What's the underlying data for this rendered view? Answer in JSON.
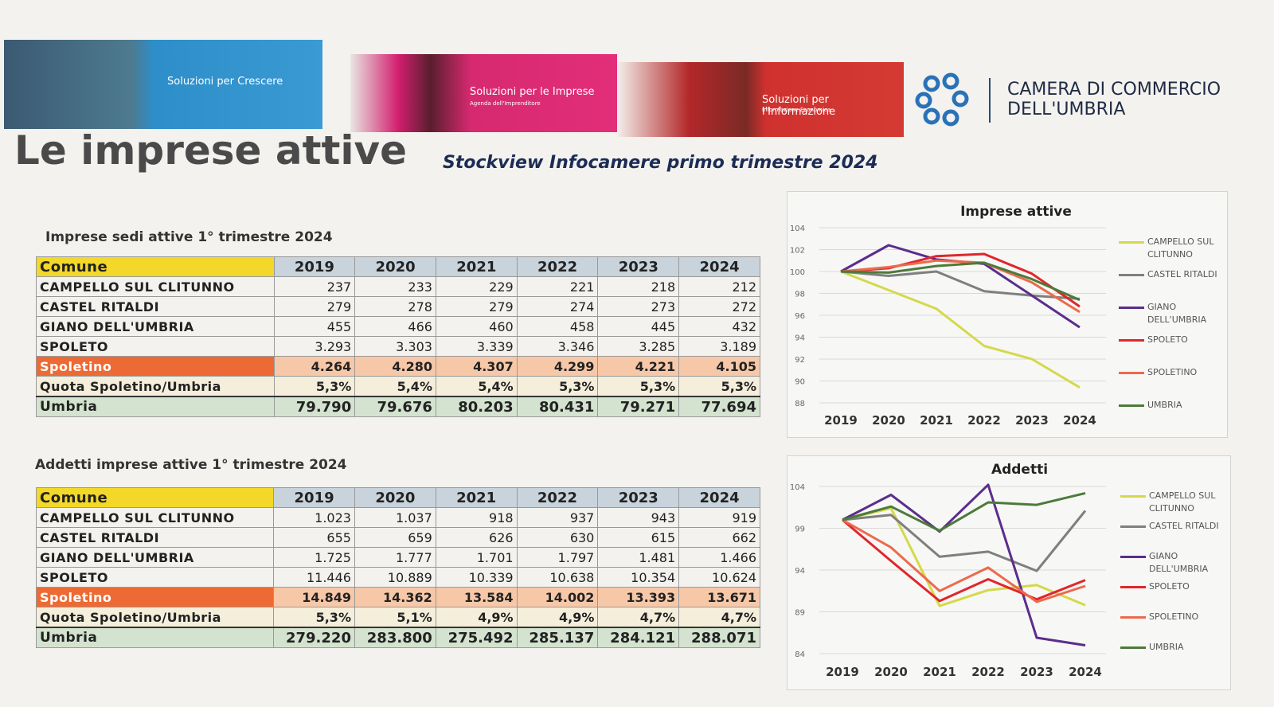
{
  "header": {
    "banners": [
      {
        "title": "Soluzioni per Crescere"
      },
      {
        "title": "Soluzioni per le Imprese",
        "subtitle": "Agenda dell'Imprenditore"
      },
      {
        "title": "Soluzioni per l'Informazione",
        "subtitle": "Informazione Economica"
      }
    ],
    "organization": [
      "CAMERA DI COMMERCIO",
      "DELL'UMBRIA"
    ]
  },
  "title": "Le imprese attive",
  "subtitle": "Stockview Infocamere primo trimestre 2024",
  "tables": [
    {
      "caption": "Imprese sedi attive 1° trimestre 2024",
      "columns": [
        "Comune",
        "2019",
        "2020",
        "2021",
        "2022",
        "2023",
        "2024"
      ],
      "rows": [
        [
          "CAMPELLO SUL CLITUNNO",
          "237",
          "233",
          "229",
          "221",
          "218",
          "212"
        ],
        [
          "CASTEL RITALDI",
          "279",
          "278",
          "279",
          "274",
          "273",
          "272"
        ],
        [
          "GIANO DELL'UMBRIA",
          "455",
          "466",
          "460",
          "458",
          "445",
          "432"
        ],
        [
          "SPOLETO",
          "3.293",
          "3.303",
          "3.339",
          "3.346",
          "3.285",
          "3.189"
        ],
        [
          "Spoletino",
          "4.264",
          "4.280",
          "4.307",
          "4.299",
          "4.221",
          "4.105"
        ],
        [
          "Quota Spoletino/Umbria",
          "5,3%",
          "5,4%",
          "5,4%",
          "5,3%",
          "5,3%",
          "5,3%"
        ],
        [
          "Umbria",
          "79.790",
          "79.676",
          "80.203",
          "80.431",
          "79.271",
          "77.694"
        ]
      ]
    },
    {
      "caption": "Addetti imprese attive 1° trimestre 2024",
      "columns": [
        "Comune",
        "2019",
        "2020",
        "2021",
        "2022",
        "2023",
        "2024"
      ],
      "rows": [
        [
          "CAMPELLO SUL CLITUNNO",
          "1.023",
          "1.037",
          "918",
          "937",
          "943",
          "919"
        ],
        [
          "CASTEL RITALDI",
          "655",
          "659",
          "626",
          "630",
          "615",
          "662"
        ],
        [
          "GIANO DELL'UMBRIA",
          "1.725",
          "1.777",
          "1.701",
          "1.797",
          "1.481",
          "1.466"
        ],
        [
          "SPOLETO",
          "11.446",
          "10.889",
          "10.339",
          "10.638",
          "10.354",
          "10.624"
        ],
        [
          "Spoletino",
          "14.849",
          "14.362",
          "13.584",
          "14.002",
          "13.393",
          "13.671"
        ],
        [
          "Quota Spoletino/Umbria",
          "5,3%",
          "5,1%",
          "4,9%",
          "4,9%",
          "4,7%",
          "4,7%"
        ],
        [
          "Umbria",
          "279.220",
          "283.800",
          "275.492",
          "285.137",
          "284.121",
          "288.071"
        ]
      ]
    }
  ],
  "chart_data": [
    {
      "type": "line",
      "title": "Imprese attive",
      "categories": [
        "2019",
        "2020",
        "2021",
        "2022",
        "2023",
        "2024"
      ],
      "ylim": [
        88,
        104
      ],
      "yticks": [
        88,
        90,
        92,
        94,
        96,
        98,
        100,
        102,
        104
      ],
      "grid": true,
      "series": [
        {
          "name": "CAMPELLO SUL CLITUNNO",
          "color": "#d4d94a",
          "values": [
            100,
            98.3,
            96.6,
            93.2,
            92.0,
            89.4
          ]
        },
        {
          "name": "CASTEL RITALDI",
          "color": "#7f7f7f",
          "values": [
            100,
            99.6,
            100,
            98.2,
            97.8,
            97.5
          ]
        },
        {
          "name": "GIANO DELL'UMBRIA",
          "color": "#5b2d8c",
          "values": [
            100,
            102.4,
            101.1,
            100.7,
            97.8,
            94.9
          ]
        },
        {
          "name": "SPOLETO",
          "color": "#e0262b",
          "values": [
            100,
            100.3,
            101.4,
            101.6,
            99.8,
            96.8
          ]
        },
        {
          "name": "SPOLETINO",
          "color": "#ec6a4c",
          "values": [
            100,
            100.4,
            101.0,
            100.8,
            99.0,
            96.3
          ]
        },
        {
          "name": "UMBRIA",
          "color": "#4c7a3a",
          "values": [
            100,
            99.9,
            100.5,
            100.8,
            99.3,
            97.4
          ]
        }
      ]
    },
    {
      "type": "line",
      "title": "Addetti",
      "categories": [
        "2019",
        "2020",
        "2021",
        "2022",
        "2023",
        "2024"
      ],
      "ylim": [
        84,
        104
      ],
      "yticks": [
        84,
        89,
        94,
        99,
        104
      ],
      "grid": true,
      "series": [
        {
          "name": "CAMPELLO SUL CLITUNNO",
          "color": "#d4d94a",
          "values": [
            100,
            101.4,
            89.7,
            91.6,
            92.2,
            89.8
          ]
        },
        {
          "name": "CASTEL RITALDI",
          "color": "#7f7f7f",
          "values": [
            100,
            100.6,
            95.6,
            96.2,
            93.9,
            101.1
          ]
        },
        {
          "name": "GIANO DELL'UMBRIA",
          "color": "#5b2d8c",
          "values": [
            100,
            103.0,
            98.6,
            104.2,
            85.9,
            85.0
          ]
        },
        {
          "name": "SPOLETO",
          "color": "#e0262b",
          "values": [
            100,
            95.1,
            90.3,
            92.9,
            90.5,
            92.8
          ]
        },
        {
          "name": "SPOLETINO",
          "color": "#ec6a4c",
          "values": [
            100,
            96.7,
            91.5,
            94.3,
            90.2,
            92.1
          ]
        },
        {
          "name": "UMBRIA",
          "color": "#4c7a3a",
          "values": [
            100,
            101.6,
            98.7,
            102.1,
            101.8,
            103.2
          ]
        }
      ]
    }
  ]
}
